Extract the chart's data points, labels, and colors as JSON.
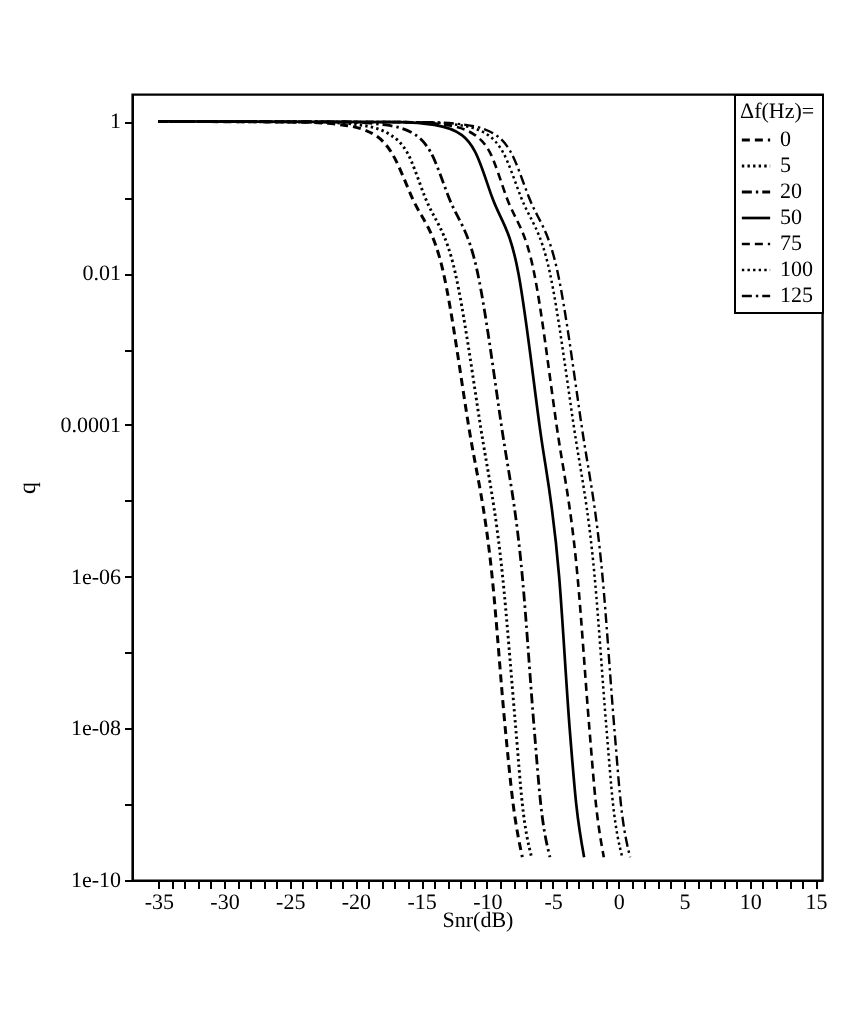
{
  "chart_data": {
    "type": "line",
    "xlabel": "Snr(dB)",
    "ylabel": "q",
    "legend_title": "Δf(Hz)=",
    "legend": "top right",
    "log": "y",
    "grid": false,
    "marker": "none",
    "xlim": [
      -37,
      15.5
    ],
    "ylim": [
      1e-10,
      2.3
    ],
    "xticks": [
      -35,
      {
        "value": -34,
        "label": null
      },
      {
        "value": -33,
        "label": null
      },
      {
        "value": -32,
        "label": null
      },
      {
        "value": -31,
        "label": null
      },
      -30,
      {
        "value": -29,
        "label": null
      },
      {
        "value": -28,
        "label": null
      },
      {
        "value": -27,
        "label": null
      },
      {
        "value": -26,
        "label": null
      },
      -25,
      {
        "value": -24,
        "label": null
      },
      {
        "value": -23,
        "label": null
      },
      {
        "value": -22,
        "label": null
      },
      {
        "value": -21,
        "label": null
      },
      -20,
      {
        "value": -19,
        "label": null
      },
      {
        "value": -18,
        "label": null
      },
      {
        "value": -17,
        "label": null
      },
      {
        "value": -16,
        "label": null
      },
      -15,
      {
        "value": -14,
        "label": null
      },
      {
        "value": -13,
        "label": null
      },
      {
        "value": -12,
        "label": null
      },
      {
        "value": -11,
        "label": null
      },
      -10,
      {
        "value": -9,
        "label": null
      },
      {
        "value": -8,
        "label": null
      },
      {
        "value": -7,
        "label": null
      },
      {
        "value": -6,
        "label": null
      },
      -5,
      {
        "value": -4,
        "label": null
      },
      {
        "value": -3,
        "label": null
      },
      {
        "value": -2,
        "label": null
      },
      {
        "value": -1,
        "label": null
      },
      0,
      {
        "value": 1,
        "label": null
      },
      {
        "value": 2,
        "label": null
      },
      {
        "value": 3,
        "label": null
      },
      {
        "value": 4,
        "label": null
      },
      5,
      {
        "value": 6,
        "label": null
      },
      {
        "value": 7,
        "label": null
      },
      {
        "value": 8,
        "label": null
      },
      {
        "value": 9,
        "label": null
      },
      10,
      {
        "value": 11,
        "label": null
      },
      {
        "value": 12,
        "label": null
      },
      {
        "value": 13,
        "label": null
      },
      {
        "value": 14,
        "label": null
      },
      15
    ],
    "yticks": [
      {
        "value": 1e-10,
        "label": "1e-10"
      },
      {
        "value": 1e-09,
        "label": null
      },
      {
        "value": 1e-08,
        "label": "1e-08"
      },
      {
        "value": 1e-07,
        "label": null
      },
      {
        "value": 1e-06,
        "label": "1e-06"
      },
      {
        "value": 1e-05,
        "label": null
      },
      {
        "value": 0.0001,
        "label": "0.0001"
      },
      {
        "value": 0.001,
        "label": null
      },
      0.01,
      {
        "value": 0.1,
        "label": null
      },
      1
    ],
    "series": [
      {
        "name": "0",
        "color": "#000000",
        "line_style": "dashed",
        "x": [
          -35,
          -24.1,
          -21.0,
          -18.5,
          -17.3,
          -15.7,
          -13.3,
          -11.4,
          -9.6,
          -8.6,
          -8.0,
          -7.3
        ],
        "values": [
          1,
          0.977,
          0.9,
          0.66,
          0.4,
          0.1,
          0.01,
          0.0001,
          1e-06,
          1e-08,
          1e-09,
          2e-10
        ]
      },
      {
        "name": "5",
        "color": "#000000",
        "line_style": "dotted",
        "x": [
          -35,
          -22.7,
          -19.7,
          -17.3,
          -16.1,
          -14.7,
          -12.4,
          -10.5,
          -8.8,
          -7.8,
          -7.3,
          -6.6
        ],
        "values": [
          1,
          0.977,
          0.9,
          0.66,
          0.4,
          0.1,
          0.01,
          0.0001,
          1e-06,
          1e-08,
          1e-09,
          2e-10
        ]
      },
      {
        "name": "20",
        "color": "#000000",
        "line_style": "dashdot",
        "x": [
          -35,
          -20.6,
          -17.7,
          -15.4,
          -14.3,
          -12.9,
          -10.7,
          -8.9,
          -7.3,
          -6.4,
          -5.9,
          -5.2
        ],
        "values": [
          1,
          0.977,
          0.9,
          0.66,
          0.4,
          0.1,
          0.01,
          0.0001,
          1e-06,
          1e-08,
          1e-09,
          2e-10
        ]
      },
      {
        "name": "50",
        "color": "#000000",
        "line_style": "solid",
        "x": [
          -35,
          -16.6,
          -14.0,
          -11.9,
          -10.9,
          -9.6,
          -7.6,
          -6.0,
          -4.5,
          -3.7,
          -3.2,
          -2.6
        ],
        "values": [
          1,
          0.977,
          0.9,
          0.66,
          0.4,
          0.1,
          0.01,
          0.0001,
          1e-06,
          1e-08,
          1e-09,
          2e-10
        ]
      },
      {
        "name": "75",
        "color": "#000000",
        "line_style": "dashed",
        "x": [
          -35,
          -15.8,
          -13.1,
          -10.9,
          -9.8,
          -8.5,
          -6.4,
          -4.7,
          -3.1,
          -2.2,
          -1.7,
          -1.1
        ],
        "values": [
          1,
          0.977,
          0.9,
          0.66,
          0.4,
          0.1,
          0.01,
          0.0001,
          1e-06,
          1e-08,
          1e-09,
          2e-10
        ]
      },
      {
        "name": "100",
        "color": "#000000",
        "line_style": "dotted",
        "x": [
          -35,
          -15.1,
          -12.2,
          -9.9,
          -8.8,
          -7.4,
          -5.2,
          -3.4,
          -1.8,
          -0.9,
          -0.4,
          0.3
        ],
        "values": [
          1,
          0.977,
          0.9,
          0.66,
          0.4,
          0.1,
          0.01,
          0.0001,
          1e-06,
          1e-08,
          1e-09,
          2e-10
        ]
      },
      {
        "name": "125",
        "color": "#000000",
        "line_style": "dashdot",
        "x": [
          -35,
          -14.5,
          -11.6,
          -9.3,
          -8.2,
          -6.8,
          -4.6,
          -2.8,
          -1.2,
          -0.3,
          0.2,
          0.9
        ],
        "values": [
          1,
          0.977,
          0.9,
          0.66,
          0.4,
          0.1,
          0.01,
          0.0001,
          1e-06,
          1e-08,
          1e-09,
          2e-10
        ]
      }
    ]
  }
}
